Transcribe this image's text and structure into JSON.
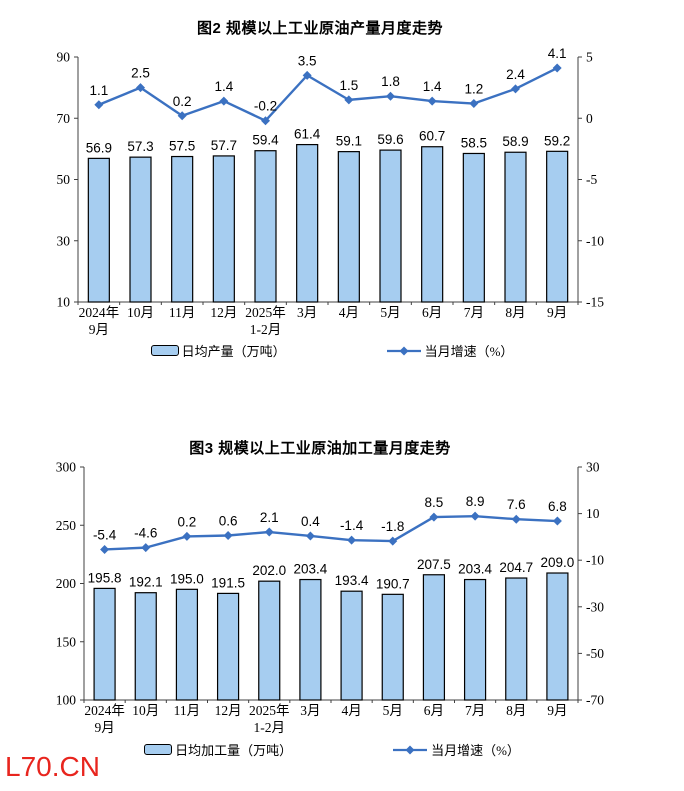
{
  "page": {
    "background": "#ffffff",
    "watermark": "L70.CN",
    "watermark_color": "#e8251e"
  },
  "chart_data": [
    {
      "type": "combo-bar-line",
      "title": "图2 规模以上工业原油产量月度走势",
      "categories": [
        "2024年\n9月",
        "10月",
        "11月",
        "12月",
        "2025年\n1-2月",
        "3月",
        "4月",
        "5月",
        "6月",
        "7月",
        "8月",
        "9月"
      ],
      "series": [
        {
          "name": "日均产量（万吨）",
          "type": "bar",
          "axis": "left",
          "values": [
            56.9,
            57.3,
            57.5,
            57.7,
            59.4,
            61.4,
            59.1,
            59.6,
            60.7,
            58.5,
            58.9,
            59.2
          ]
        },
        {
          "name": "当月增速（%）",
          "type": "line",
          "axis": "right",
          "values": [
            1.1,
            2.5,
            0.2,
            1.4,
            -0.2,
            3.5,
            1.5,
            1.8,
            1.4,
            1.2,
            2.4,
            4.1
          ]
        }
      ],
      "left_axis": {
        "min": 10,
        "max": 90,
        "ticks": [
          90,
          70,
          50,
          30,
          10
        ]
      },
      "right_axis": {
        "min": -15,
        "max": 5,
        "ticks": [
          5,
          0,
          -5,
          -10,
          -15
        ]
      },
      "legend_position": "bottom",
      "grid": false,
      "value_label_decimals": 1,
      "colors": {
        "bar_fill": "#a6cdf0",
        "bar_stroke": "#000000",
        "line": "#3b71c1",
        "axis": "#404040"
      }
    },
    {
      "type": "combo-bar-line",
      "title": "图3 规模以上工业原油加工量月度走势",
      "categories": [
        "2024年\n9月",
        "10月",
        "11月",
        "12月",
        "2025年\n1-2月",
        "3月",
        "4月",
        "5月",
        "6月",
        "7月",
        "8月",
        "9月"
      ],
      "series": [
        {
          "name": "日均加工量（万吨）",
          "type": "bar",
          "axis": "left",
          "values": [
            195.8,
            192.1,
            195.0,
            191.5,
            202.0,
            203.4,
            193.4,
            190.7,
            207.5,
            203.4,
            204.7,
            209.0
          ]
        },
        {
          "name": "当月增速（%）",
          "type": "line",
          "axis": "right",
          "values": [
            -5.4,
            -4.6,
            0.2,
            0.6,
            2.1,
            0.4,
            -1.4,
            -1.8,
            8.5,
            8.9,
            7.6,
            6.8
          ]
        }
      ],
      "left_axis": {
        "min": 100,
        "max": 300,
        "ticks": [
          300,
          250,
          200,
          150,
          100
        ]
      },
      "right_axis": {
        "min": -70,
        "max": 30,
        "ticks": [
          30,
          10,
          -10,
          -30,
          -50,
          -70
        ]
      },
      "legend_position": "bottom",
      "grid": false,
      "value_label_decimals": 1,
      "colors": {
        "bar_fill": "#a6cdf0",
        "bar_stroke": "#000000",
        "line": "#3b71c1",
        "axis": "#404040"
      }
    }
  ]
}
